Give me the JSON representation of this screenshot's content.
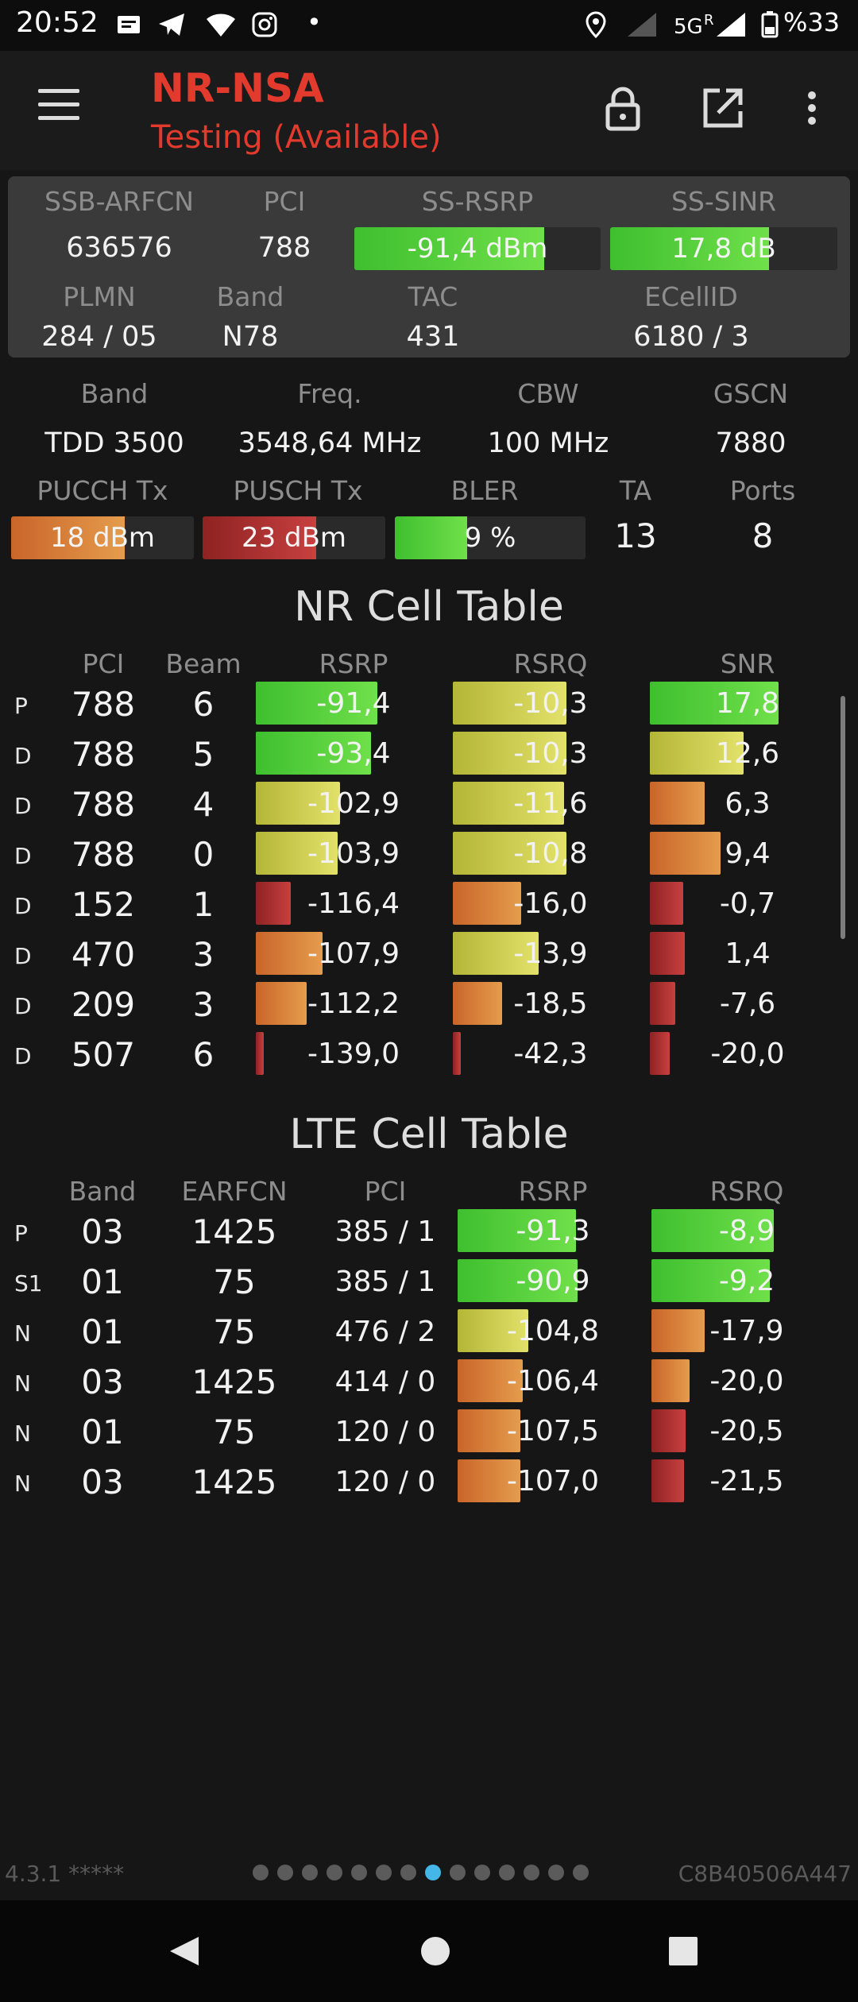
{
  "status_bar": {
    "time": "20:52",
    "network": "5G",
    "roaming": "R",
    "battery": "%33",
    "icons": [
      "message-icon",
      "telegram-icon",
      "wifi-icon",
      "instagram-icon",
      "dot-icon",
      "location-icon",
      "signal-icon",
      "signal-5g-icon",
      "battery-icon"
    ]
  },
  "app_bar": {
    "title": "NR-NSA",
    "subtitle": "Testing (Available)",
    "accent": "#e23b2e",
    "icons": [
      "menu-icon",
      "lock-icon",
      "open-external-icon",
      "more-vertical-icon"
    ]
  },
  "summary": {
    "headers": [
      "SSB-ARFCN",
      "PCI",
      "SS-RSRP",
      "SS-SINR"
    ],
    "ssb_arfcn": "636576",
    "pci": "788",
    "ss_rsrp": {
      "text": "-91,4 dBm",
      "level": 0.77
    },
    "ss_sinr": {
      "text": "17,8 dB",
      "level": 0.7
    },
    "headers2": [
      "PLMN",
      "Band",
      "TAC",
      "ECellID"
    ],
    "plmn": "284 / 05",
    "band": "N78",
    "tac": "431",
    "ecellid": "6180 / 3"
  },
  "radio": {
    "headers": [
      "Band",
      "Freq.",
      "CBW",
      "GSCN"
    ],
    "band": "TDD 3500",
    "freq": "3548,64 MHz",
    "cbw": "100 MHz",
    "gscn": "7880",
    "headers2": [
      "PUCCH Tx",
      "PUSCH Tx",
      "BLER",
      "TA",
      "Ports"
    ],
    "pucch": {
      "text": "18 dBm",
      "level": 0.62
    },
    "pusch": {
      "text": "23 dBm",
      "level": 0.62
    },
    "bler": {
      "text": "9 %",
      "level": 0.38
    },
    "ta": "13",
    "ports": "8"
  },
  "nr_table": {
    "title": "NR Cell Table",
    "headers": [
      "PCI",
      "Beam",
      "RSRP",
      "RSRQ",
      "SNR"
    ],
    "rows": [
      {
        "tag": "P",
        "pci": "788",
        "beam": "6",
        "rsrp": "-91,4",
        "rsrp_lvl": 0.62,
        "rsrp_c": "green",
        "rsrq": "-10,3",
        "rsrq_lvl": 0.58,
        "rsrq_c": "yellow",
        "snr": "17,8",
        "snr_lvl": 0.66,
        "snr_c": "green"
      },
      {
        "tag": "D",
        "pci": "788",
        "beam": "5",
        "rsrp": "-93,4",
        "rsrp_lvl": 0.59,
        "rsrp_c": "green",
        "rsrq": "-10,3",
        "rsrq_lvl": 0.58,
        "rsrq_c": "yellow",
        "snr": "12,6",
        "snr_lvl": 0.48,
        "snr_c": "yellow"
      },
      {
        "tag": "D",
        "pci": "788",
        "beam": "4",
        "rsrp": "-102,9",
        "rsrp_lvl": 0.43,
        "rsrp_c": "yellow",
        "rsrq": "-11,6",
        "rsrq_lvl": 0.57,
        "rsrq_c": "yellow",
        "snr": "6,3",
        "snr_lvl": 0.28,
        "snr_c": "orange"
      },
      {
        "tag": "D",
        "pci": "788",
        "beam": "0",
        "rsrp": "-103,9",
        "rsrp_lvl": 0.42,
        "rsrp_c": "yellow",
        "rsrq": "-10,8",
        "rsrq_lvl": 0.58,
        "rsrq_c": "yellow",
        "snr": "9,4",
        "snr_lvl": 0.36,
        "snr_c": "orange"
      },
      {
        "tag": "D",
        "pci": "152",
        "beam": "1",
        "rsrp": "-116,4",
        "rsrp_lvl": 0.18,
        "rsrp_c": "red",
        "rsrq": "-16,0",
        "rsrq_lvl": 0.35,
        "rsrq_c": "orange",
        "snr": "-0,7",
        "snr_lvl": 0.17,
        "snr_c": "red"
      },
      {
        "tag": "D",
        "pci": "470",
        "beam": "3",
        "rsrp": "-107,9",
        "rsrp_lvl": 0.34,
        "rsrp_c": "orange",
        "rsrq": "-13,9",
        "rsrq_lvl": 0.44,
        "rsrq_c": "yellow",
        "snr": "1,4",
        "snr_lvl": 0.18,
        "snr_c": "red"
      },
      {
        "tag": "D",
        "pci": "209",
        "beam": "3",
        "rsrp": "-112,2",
        "rsrp_lvl": 0.26,
        "rsrp_c": "orange",
        "rsrq": "-18,5",
        "rsrq_lvl": 0.25,
        "rsrq_c": "orange",
        "snr": "-7,6",
        "snr_lvl": 0.13,
        "snr_c": "red"
      },
      {
        "tag": "D",
        "pci": "507",
        "beam": "6",
        "rsrp": "-139,0",
        "rsrp_lvl": 0.04,
        "rsrp_c": "red",
        "rsrq": "-42,3",
        "rsrq_lvl": 0.04,
        "rsrq_c": "red",
        "snr": "-20,0",
        "snr_lvl": 0.1,
        "snr_c": "red"
      }
    ]
  },
  "lte_table": {
    "title": "LTE Cell Table",
    "headers": [
      "Band",
      "EARFCN",
      "PCI",
      "RSRP",
      "RSRQ"
    ],
    "rows": [
      {
        "tag": "P",
        "band": "03",
        "earfcn": "1425",
        "pci": "385 / 1",
        "rsrp": "-91,3",
        "rsrp_lvl": 0.62,
        "rsrp_c": "green",
        "rsrq": "-8,9",
        "rsrq_lvl": 0.64,
        "rsrq_c": "green"
      },
      {
        "tag": "S1",
        "band": "01",
        "earfcn": "75",
        "pci": "385 / 1",
        "rsrp": "-90,9",
        "rsrp_lvl": 0.63,
        "rsrp_c": "green",
        "rsrq": "-9,2",
        "rsrq_lvl": 0.62,
        "rsrq_c": "green"
      },
      {
        "tag": "N",
        "band": "01",
        "earfcn": "75",
        "pci": "476 / 2",
        "rsrp": "-104,8",
        "rsrp_lvl": 0.37,
        "rsrp_c": "yellow",
        "rsrq": "-17,9",
        "rsrq_lvl": 0.28,
        "rsrq_c": "orange"
      },
      {
        "tag": "N",
        "band": "03",
        "earfcn": "1425",
        "pci": "414 / 0",
        "rsrp": "-106,4",
        "rsrp_lvl": 0.34,
        "rsrp_c": "orange",
        "rsrq": "-20,0",
        "rsrq_lvl": 0.2,
        "rsrq_c": "orange"
      },
      {
        "tag": "N",
        "band": "01",
        "earfcn": "75",
        "pci": "120 / 0",
        "rsrp": "-107,5",
        "rsrp_lvl": 0.33,
        "rsrp_c": "orange",
        "rsrq": "-20,5",
        "rsrq_lvl": 0.18,
        "rsrq_c": "red"
      },
      {
        "tag": "N",
        "band": "03",
        "earfcn": "1425",
        "pci": "120 / 0",
        "rsrp": "-107,0",
        "rsrp_lvl": 0.33,
        "rsrp_c": "orange",
        "rsrq": "-21,5",
        "rsrq_lvl": 0.17,
        "rsrq_c": "red"
      }
    ]
  },
  "footer": {
    "version": "4.3.1 *****",
    "device_id": "C8B40506A447",
    "page_count": 14,
    "active_page": 8
  },
  "nav_bar": {
    "icons": [
      "back-icon",
      "home-icon",
      "recents-icon"
    ]
  }
}
